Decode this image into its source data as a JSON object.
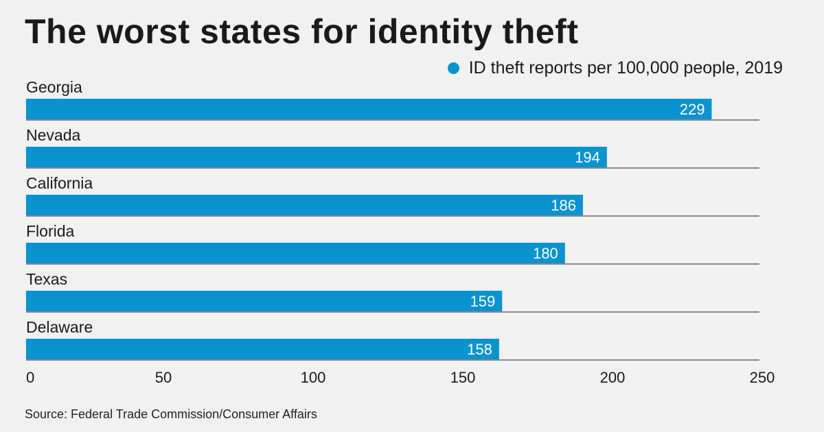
{
  "title": "The worst states for identity theft",
  "source": "Source: Federal Trade Commission/Consumer Affairs",
  "colors": {
    "bar": "#0a93cf",
    "bar_text": "#ffffff",
    "baseline": "#666666",
    "text": "#1a1a1a"
  },
  "chart_data": {
    "type": "bar",
    "orientation": "horizontal",
    "title": "The worst states for identity theft",
    "categories": [
      "Georgia",
      "Nevada",
      "California",
      "Florida",
      "Texas",
      "Delaware"
    ],
    "series": [
      {
        "name": "ID theft reports per 100,000 people, 2019",
        "values": [
          229,
          194,
          186,
          180,
          159,
          158
        ]
      }
    ],
    "data_labels": [
      "229",
      "194",
      "186",
      "180",
      "159",
      "158"
    ],
    "xlim": [
      0,
      250
    ],
    "x_ticks": [
      0,
      50,
      100,
      150,
      200,
      250
    ],
    "xlabel": "",
    "ylabel": "",
    "grid": false,
    "legend": "top-right"
  }
}
